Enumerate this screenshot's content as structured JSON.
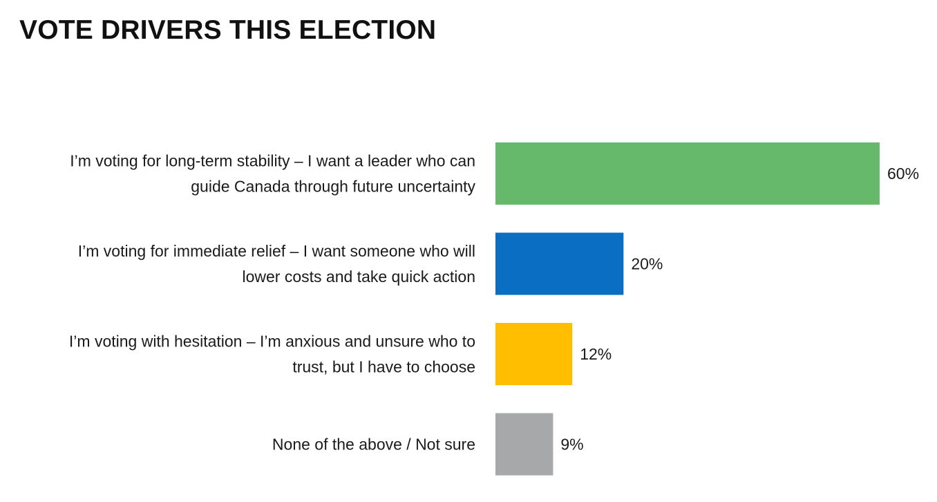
{
  "chart_data": {
    "type": "bar",
    "orientation": "horizontal",
    "title": "VOTE DRIVERS THIS ELECTION",
    "categories": [
      [
        "I’m voting for long-term stability  – I want a leader who can",
        "guide Canada through future uncertainty"
      ],
      [
        "I’m voting for immediate relief – I want someone who will",
        "lower costs and take quick action"
      ],
      [
        "I’m voting with hesitation – I’m anxious and unsure who to",
        "trust, but I have to choose"
      ],
      [
        "None of the above / Not sure"
      ]
    ],
    "values": [
      60,
      20,
      12,
      9
    ],
    "value_labels": [
      "60%",
      "20%",
      "12%",
      "9%"
    ],
    "colors": [
      "#66b86a",
      "#0a6fc2",
      "#ffbf00",
      "#a6a8aa"
    ],
    "unit": "%",
    "xlim": [
      0,
      60
    ],
    "grid": false,
    "legend": "none"
  }
}
